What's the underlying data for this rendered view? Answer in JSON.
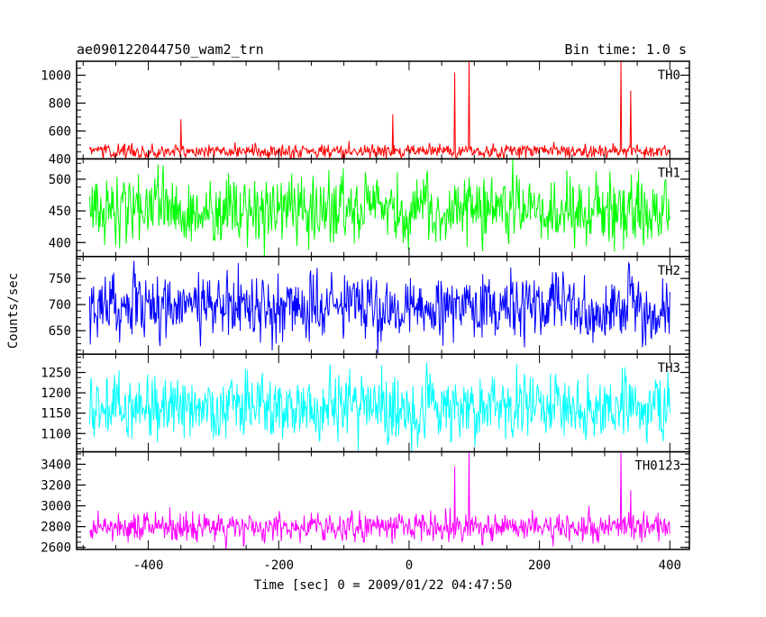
{
  "header": {
    "title": "ae090122044750_wam2_trn",
    "bin_time": "Bin time: 1.0 s"
  },
  "chart_data": {
    "type": "line",
    "title": "ae090122044750_wam2_trn",
    "subtitle": "Bin time: 1.0 s",
    "xlabel": "Time [sec] 0 = 2009/01/22 04:47:50",
    "ylabel": "Counts/sec",
    "xlim": [
      -510,
      430
    ],
    "x_range": [
      -490,
      400
    ],
    "xticks": [
      -400,
      -200,
      0,
      200,
      400
    ],
    "grid": false,
    "panels": [
      {
        "name": "TH0",
        "color": "#ff0000",
        "ylim": [
          400,
          1100
        ],
        "yticks": [
          400,
          600,
          800,
          1000
        ],
        "baseline": 455,
        "noise": 28,
        "spikes": [
          {
            "x": -350,
            "y": 685
          },
          {
            "x": -25,
            "y": 720
          },
          {
            "x": 70,
            "y": 1020
          },
          {
            "x": 92,
            "y": 1100
          },
          {
            "x": 325,
            "y": 1100
          },
          {
            "x": 340,
            "y": 890
          }
        ]
      },
      {
        "name": "TH1",
        "color": "#00ff00",
        "ylim": [
          378,
          532
        ],
        "yticks": [
          400,
          450,
          500
        ],
        "baseline": 453,
        "noise": 32,
        "spikes": []
      },
      {
        "name": "TH2",
        "color": "#0000ff",
        "ylim": [
          605,
          792
        ],
        "yticks": [
          650,
          700,
          750
        ],
        "baseline": 695,
        "noise": 38,
        "spikes": []
      },
      {
        "name": "TH3",
        "color": "#00ffff",
        "ylim": [
          1055,
          1295
        ],
        "yticks": [
          1100,
          1150,
          1200,
          1250
        ],
        "baseline": 1165,
        "noise": 48,
        "spikes": []
      },
      {
        "name": "TH0123",
        "color": "#ff00ff",
        "ylim": [
          2580,
          3520
        ],
        "yticks": [
          2600,
          2800,
          3000,
          3200,
          3400
        ],
        "baseline": 2790,
        "noise": 80,
        "spikes": [
          {
            "x": 70,
            "y": 3380
          },
          {
            "x": 92,
            "y": 3520
          },
          {
            "x": 325,
            "y": 3520
          },
          {
            "x": 340,
            "y": 3150
          }
        ]
      }
    ]
  }
}
